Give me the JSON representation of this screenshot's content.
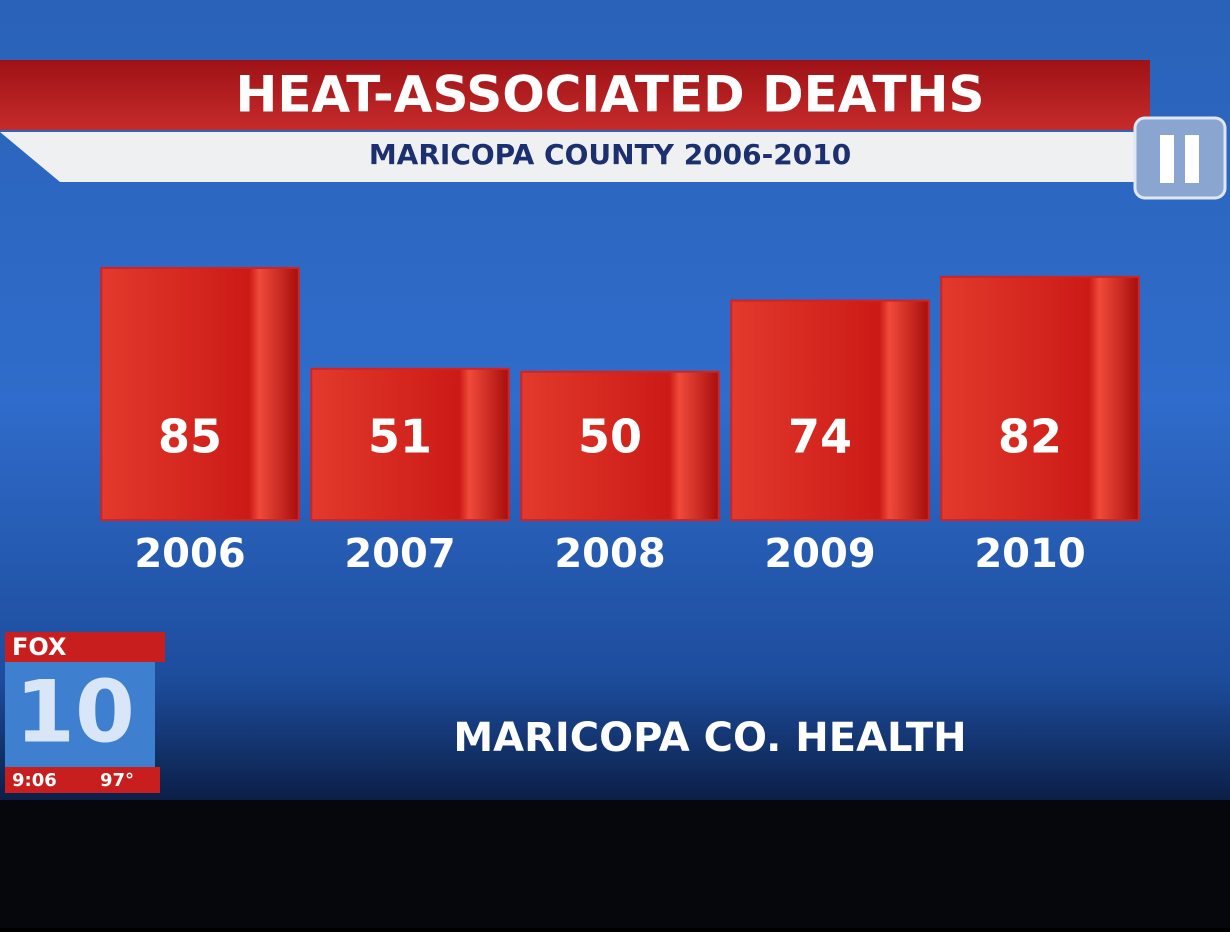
{
  "chart_data": {
    "type": "bar",
    "title": "HEAT-ASSOCIATED DEATHS",
    "subtitle": "MARICOPA COUNTY 2006-2010",
    "categories": [
      "2006",
      "2007",
      "2008",
      "2009",
      "2010"
    ],
    "values": [
      85,
      51,
      50,
      74,
      82
    ],
    "color": "#d42222",
    "source": "MARICOPA CO. HEALTH"
  },
  "logo": {
    "brand": "FOX",
    "channel": "10",
    "time": "9:06",
    "temperature": "97°"
  }
}
